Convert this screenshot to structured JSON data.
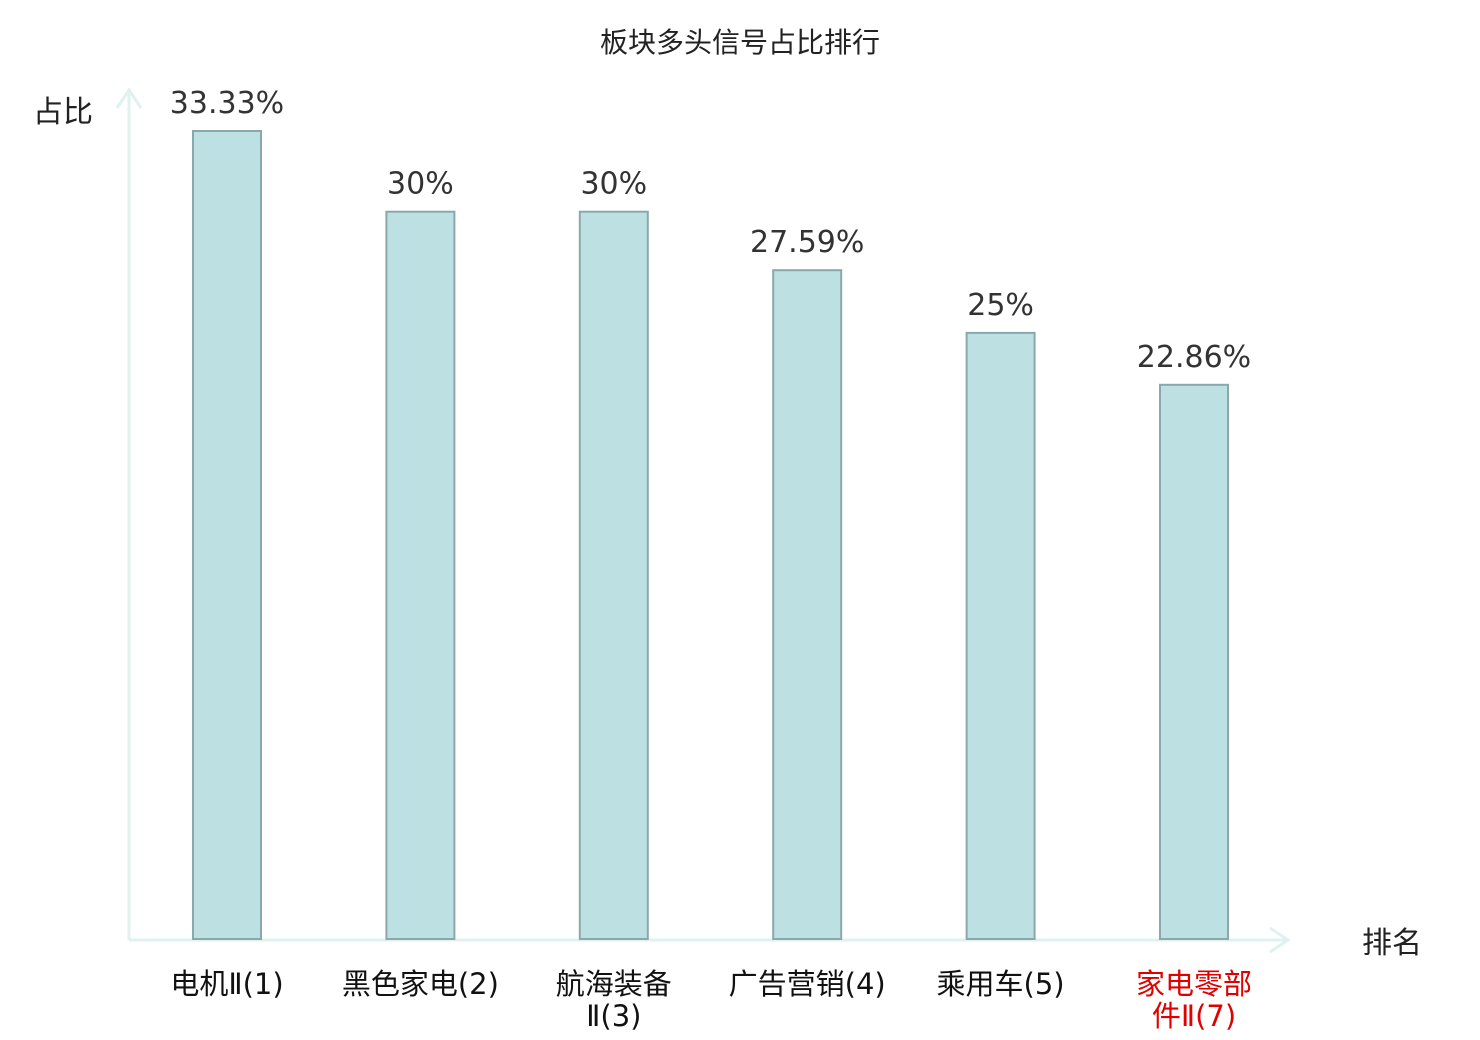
{
  "chart_data": {
    "type": "bar",
    "title": "板块多头信号占比排行",
    "ylabel": "占比",
    "xlabel": "排名",
    "ylim": [
      0,
      36.7
    ],
    "grid": false,
    "legend": "none",
    "categories": [
      {
        "lines": [
          "电机Ⅱ(1)"
        ],
        "highlight": false
      },
      {
        "lines": [
          "黑色家电(2)"
        ],
        "highlight": false
      },
      {
        "lines": [
          "航海装备",
          "Ⅱ(3)"
        ],
        "highlight": false
      },
      {
        "lines": [
          "广告营销(4)"
        ],
        "highlight": false
      },
      {
        "lines": [
          "乘用车(5)"
        ],
        "highlight": false
      },
      {
        "lines": [
          "家电零部",
          "件Ⅱ(7)"
        ],
        "highlight": true
      }
    ],
    "values": [
      33.33,
      30,
      30,
      27.59,
      25,
      22.86
    ],
    "value_labels": [
      "33.33%",
      "30%",
      "30%",
      "27.59%",
      "25%",
      "22.86%"
    ],
    "colors": {
      "bar_fill": "#bde0e3",
      "bar_stroke": "#8aa8ab",
      "axis": "#dff2ef",
      "tick_text": "#111111",
      "highlight_text": "#e00000"
    }
  }
}
